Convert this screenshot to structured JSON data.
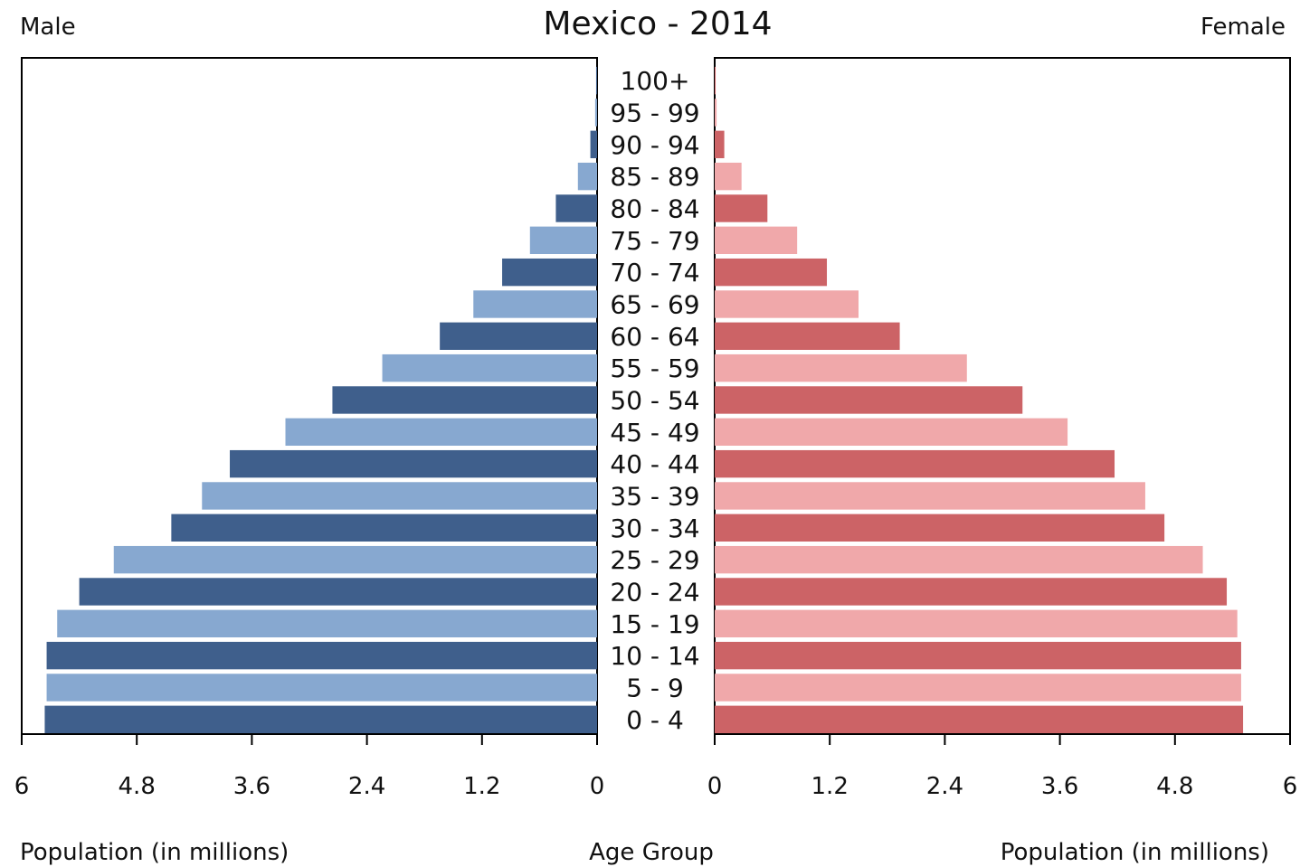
{
  "chart_data": {
    "type": "bar",
    "title": "Mexico - 2014",
    "left_label": "Male",
    "right_label": "Female",
    "xlabel_left": "Population (in millions)",
    "xlabel_right": "Population (in millions)",
    "center_label": "Age Group",
    "xlim": [
      0,
      6
    ],
    "x_ticks_left": [
      "6",
      "4.8",
      "3.6",
      "2.4",
      "1.2",
      "0"
    ],
    "x_ticks_right": [
      "0",
      "1.2",
      "2.4",
      "3.6",
      "4.8",
      "6"
    ],
    "categories": [
      "0 - 4",
      "5 - 9",
      "10 - 14",
      "15 - 19",
      "20 - 24",
      "25 - 29",
      "30 - 34",
      "35 - 39",
      "40 - 44",
      "45 - 49",
      "50 - 54",
      "55 - 59",
      "60 - 64",
      "65 - 69",
      "70 - 74",
      "75 - 79",
      "80 - 84",
      "85 - 89",
      "90 - 94",
      "95 - 99",
      "100+"
    ],
    "series": [
      {
        "name": "Male",
        "values": [
          5.76,
          5.74,
          5.74,
          5.63,
          5.4,
          5.04,
          4.44,
          4.12,
          3.83,
          3.25,
          2.76,
          2.24,
          1.64,
          1.29,
          0.99,
          0.7,
          0.43,
          0.2,
          0.07,
          0.02,
          0.01
        ]
      },
      {
        "name": "Female",
        "values": [
          5.51,
          5.49,
          5.49,
          5.45,
          5.34,
          5.09,
          4.69,
          4.49,
          4.17,
          3.68,
          3.21,
          2.63,
          1.93,
          1.5,
          1.17,
          0.86,
          0.55,
          0.28,
          0.1,
          0.02,
          0.01
        ]
      }
    ],
    "colors": {
      "male_dark": "#3f5f8c",
      "male_light": "#87a8d0",
      "female_dark": "#cc6366",
      "female_light": "#f0a8aa"
    },
    "grid": false,
    "legend": "none"
  }
}
